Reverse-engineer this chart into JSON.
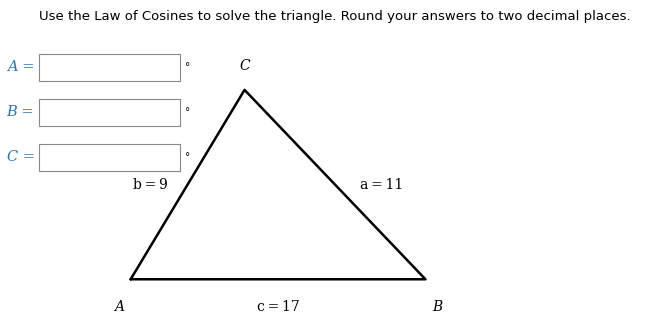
{
  "title": "Use the Law of Cosines to solve the triangle. Round your answers to two decimal places.",
  "title_color": "#000000",
  "title_fontsize": 9.5,
  "labels": [
    "A =",
    "B =",
    "C ="
  ],
  "label_color": "#2e74b5",
  "label_fontsize": 10.5,
  "degree_symbol": "°",
  "box_color": "#888888",
  "triangle_A": [
    0.195,
    0.13
  ],
  "triangle_B": [
    0.635,
    0.13
  ],
  "triangle_C": [
    0.365,
    0.72
  ],
  "vertex_labels": [
    "A",
    "B",
    "C"
  ],
  "side_label_b": "b = 9",
  "side_label_a": "a = 11",
  "side_label_c": "c = 17",
  "side_label_fontsize": 10,
  "triangle_color": "#000000",
  "triangle_linewidth": 1.8,
  "background_color": "#ffffff"
}
